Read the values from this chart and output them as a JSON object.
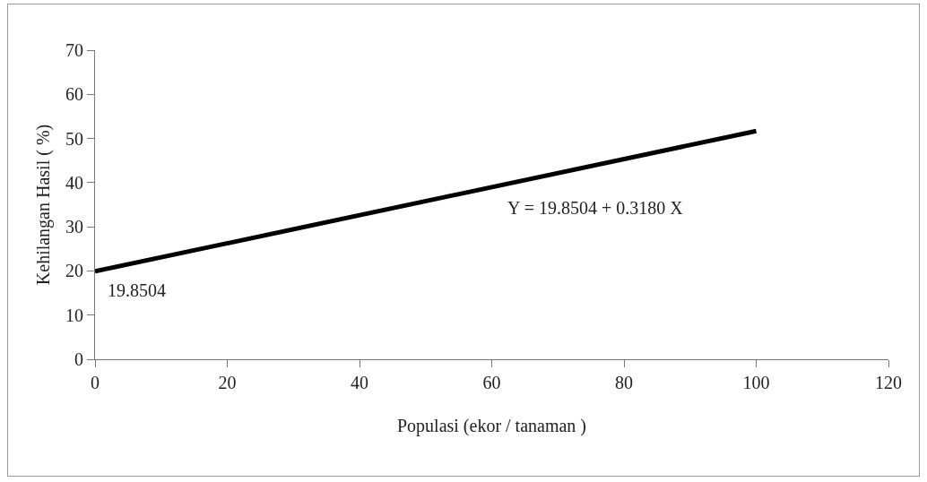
{
  "chart_data": {
    "type": "line",
    "xlabel": "Populasi (ekor / tanaman )",
    "ylabel": "Kehilangan Hasil ( %)",
    "x": [
      0,
      100
    ],
    "series": [
      {
        "color": "#000000",
        "values": [
          19.9,
          51.7
        ]
      }
    ],
    "xlim": [
      0,
      120
    ],
    "xticks": [
      0,
      20,
      40,
      60,
      80,
      100,
      120
    ],
    "ylim": [
      0,
      70
    ],
    "yticks": [
      0,
      10,
      20,
      30,
      40,
      50,
      60,
      70
    ],
    "grid": false,
    "marker": "none",
    "line_style": "solid",
    "annotations": [
      {
        "text": "19.8504",
        "x": 0,
        "y": 19.8504
      },
      "Y = 19.8504 + 0.3180 X"
    ]
  }
}
